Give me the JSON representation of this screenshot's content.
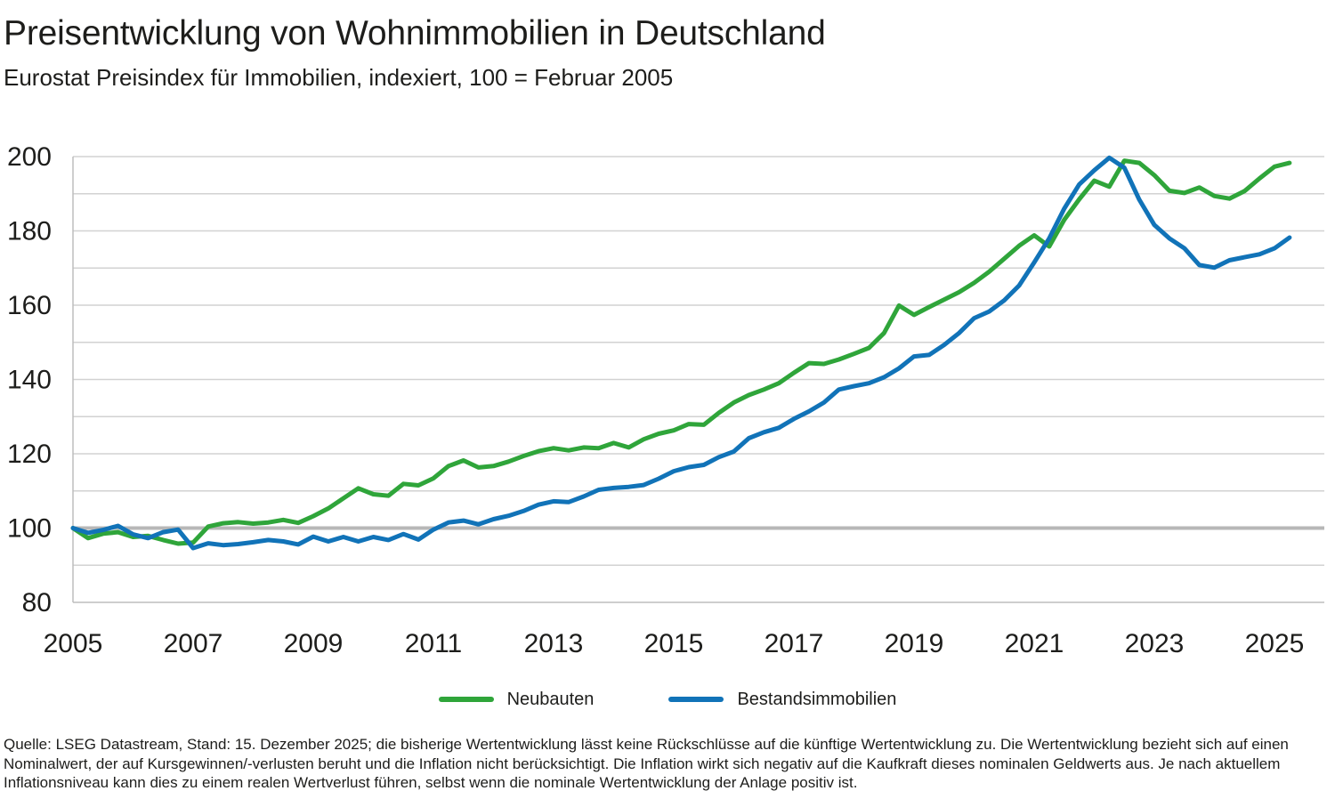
{
  "header": {
    "title": "Preisentwicklung von Wohnimmobilien in Deutschland",
    "subtitle": "Eurostat Preisindex für Immobilien, indexiert, 100 = Februar 2005"
  },
  "legend": [
    {
      "label": "Neubauten",
      "color": "#2fa53a"
    },
    {
      "label": "Bestandsimmobilien",
      "color": "#1173b8"
    }
  ],
  "footer": {
    "text": "Quelle: LSEG Datastream, Stand: 15. Dezember 2025; die bisherige Wertentwicklung lässt keine Rückschlüsse auf die künftige Wertentwicklung zu. Die Wertentwicklung bezieht sich auf einen Nominalwert, der auf Kursgewinnen/-verlusten beruht und die Inflation nicht berücksichtigt. Die Inflation wirkt sich negativ auf die Kaufkraft dieses nominalen Geldwerts aus. Je nach aktuellem Inflationsniveau kann dies zu einem realen Wertverlust führen, selbst wenn die nominale Wertentwicklung der Anlage positiv ist."
  },
  "chart_data": {
    "type": "line",
    "title": "Preisentwicklung von Wohnimmobilien in Deutschland",
    "subtitle": "Eurostat Preisindex für Immobilien, indexiert, 100 = Februar 2005",
    "x_unit": "year, quarterly steps",
    "x_start": 2005.0,
    "x_step": 0.25,
    "x_ticks": [
      2005,
      2007,
      2009,
      2011,
      2013,
      2015,
      2017,
      2019,
      2021,
      2023,
      2025
    ],
    "xlim": [
      2005,
      2025.85
    ],
    "y_ticks": [
      80,
      100,
      120,
      140,
      160,
      180,
      200
    ],
    "ylim": [
      80,
      200
    ],
    "grid_interval": 10,
    "grid": "horizontal",
    "baseline_value": 100,
    "legend_position": "bottom-center",
    "series": [
      {
        "name": "Neubauten",
        "color": "#2fa53a",
        "values": [
          100.0,
          97.3,
          98.5,
          98.9,
          97.6,
          97.9,
          96.8,
          95.8,
          96.1,
          100.4,
          101.3,
          101.6,
          101.2,
          101.5,
          102.2,
          101.4,
          103.2,
          105.3,
          108.0,
          110.7,
          109.1,
          108.7,
          111.9,
          111.5,
          113.4,
          116.7,
          118.2,
          116.3,
          116.7,
          117.9,
          119.4,
          120.7,
          121.5,
          120.9,
          121.7,
          121.5,
          122.9,
          121.7,
          123.9,
          125.4,
          126.3,
          128.0,
          127.8,
          131.0,
          133.8,
          135.8,
          137.3,
          139.0,
          141.8,
          144.4,
          144.2,
          145.4,
          146.9,
          148.5,
          152.5,
          159.9,
          157.4,
          159.5,
          161.5,
          163.5,
          166.0,
          169.0,
          172.5,
          176.0,
          178.8,
          175.8,
          183.0,
          188.5,
          193.5,
          191.9,
          198.9,
          198.3,
          195.0,
          190.8,
          190.2,
          191.7,
          189.4,
          188.7,
          190.7,
          194.1,
          197.3,
          198.3
        ]
      },
      {
        "name": "Bestandsimmobilien",
        "color": "#1173b8",
        "values": [
          100.0,
          98.7,
          99.5,
          100.6,
          98.3,
          97.3,
          98.9,
          99.6,
          94.6,
          95.9,
          95.4,
          95.7,
          96.2,
          96.8,
          96.4,
          95.6,
          97.7,
          96.4,
          97.6,
          96.4,
          97.6,
          96.8,
          98.4,
          96.9,
          99.6,
          101.5,
          102.0,
          101.0,
          102.4,
          103.3,
          104.6,
          106.3,
          107.2,
          107.0,
          108.5,
          110.3,
          110.8,
          111.1,
          111.6,
          113.3,
          115.3,
          116.4,
          117.0,
          119.1,
          120.6,
          124.2,
          125.8,
          127.0,
          129.4,
          131.4,
          133.8,
          137.3,
          138.2,
          139.0,
          140.6,
          143.0,
          146.2,
          146.6,
          149.3,
          152.5,
          156.5,
          158.3,
          161.3,
          165.3,
          171.5,
          178.0,
          186.0,
          192.5,
          196.3,
          199.7,
          197.0,
          188.4,
          181.6,
          178.0,
          175.3,
          170.8,
          170.1,
          172.1,
          172.9,
          173.7,
          175.3,
          178.2
        ]
      }
    ]
  },
  "style_colors": {
    "grid_line": "#d2d2d2",
    "axis_line": "#bdbdbd",
    "baseline_line": "#b7b7b7",
    "text": "#1d1d1b"
  }
}
